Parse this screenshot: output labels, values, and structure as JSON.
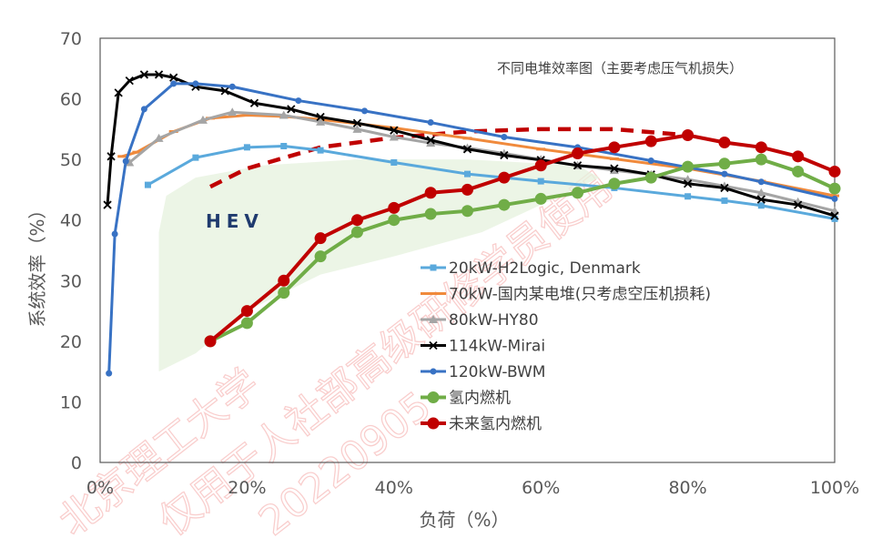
{
  "chart_data": {
    "type": "line",
    "title": "",
    "xlabel": "负荷（%）",
    "ylabel": "系统效率（%）",
    "xlim": [
      0,
      100
    ],
    "ylim": [
      0,
      70
    ],
    "x_ticks": [
      "0%",
      "20%",
      "40%",
      "60%",
      "80%",
      "100%"
    ],
    "y_ticks": [
      "0",
      "10",
      "20",
      "30",
      "40",
      "50",
      "60",
      "70"
    ],
    "grid": false,
    "legend_position": "center-right",
    "annotations": [
      "不同电堆效率图（主要考虑压气机损失）",
      "HEV"
    ],
    "watermark": "北京理工大学 仅用于人社部高级研修学员使用 20220905",
    "hev_region": {
      "color": "#e6f2dd",
      "outline": [
        [
          9,
          44
        ],
        [
          13,
          47
        ],
        [
          22,
          49
        ],
        [
          35,
          50
        ],
        [
          50,
          50
        ],
        [
          65,
          49
        ],
        [
          68,
          47
        ],
        [
          52,
          38
        ],
        [
          40,
          34
        ],
        [
          30,
          31
        ],
        [
          20,
          25
        ],
        [
          13,
          18
        ],
        [
          8,
          15
        ],
        [
          8,
          28
        ],
        [
          8,
          38
        ]
      ]
    },
    "series": [
      {
        "name": "20kW-H2Logic, Denmark",
        "color": "#5aa9dc",
        "marker": "square",
        "x": [
          6.5,
          13,
          20,
          25,
          30,
          40,
          50,
          60,
          70,
          80,
          85,
          90,
          100
        ],
        "y": [
          45.8,
          50.3,
          52,
          52.2,
          51.5,
          49.5,
          47.6,
          46.4,
          45.3,
          43.9,
          43.2,
          42.4,
          40.2
        ]
      },
      {
        "name": "70kW-国内某电堆(只考虑空压机损耗)",
        "color": "#f08a3c",
        "marker": "dash",
        "x": [
          3,
          5,
          10,
          15,
          20,
          25,
          30,
          40,
          50,
          60,
          70,
          80,
          90,
          100
        ],
        "y": [
          50.5,
          51.2,
          54.6,
          56.8,
          57.3,
          57.1,
          56.6,
          55.2,
          53.5,
          51.7,
          50.1,
          48.5,
          46.4,
          44
        ]
      },
      {
        "name": "80kW-HY80",
        "color": "#a5a5a5",
        "marker": "triangle",
        "x": [
          4,
          8,
          14,
          18,
          25,
          30,
          35,
          40,
          45,
          50,
          55,
          60,
          65,
          70,
          75,
          80,
          85,
          90,
          95,
          100
        ],
        "y": [
          49.5,
          53.5,
          56.5,
          57.8,
          57.3,
          56.2,
          55,
          53.7,
          52.7,
          51.9,
          51,
          50,
          49,
          48.2,
          47.5,
          46.7,
          45.6,
          44.5,
          43,
          41.5
        ]
      },
      {
        "name": "114kW-Mirai",
        "color": "#000000",
        "marker": "cross",
        "x": [
          1,
          1.5,
          2.5,
          4,
          6,
          8,
          10,
          13,
          17,
          21,
          26,
          30,
          35,
          40,
          45,
          50,
          55,
          60,
          65,
          70,
          75,
          80,
          85,
          90,
          95,
          100
        ],
        "y": [
          42.5,
          50.5,
          61,
          63,
          64,
          64,
          63.5,
          62,
          61.3,
          59.3,
          58.3,
          57,
          56,
          54.8,
          53.2,
          51.7,
          50.7,
          49.9,
          49,
          48.5,
          47.5,
          46,
          45.3,
          43.4,
          42.5,
          40.7
        ]
      },
      {
        "name": "120kW-BWM",
        "color": "#3872c4",
        "marker": "circle",
        "x": [
          1.2,
          2,
          3.5,
          6,
          10,
          13,
          18,
          27,
          36,
          45,
          55,
          65,
          75,
          85,
          90,
          100
        ],
        "y": [
          14.7,
          37.7,
          49.7,
          58.3,
          62.5,
          62.5,
          62,
          59.7,
          58,
          56.1,
          53.7,
          52,
          49.8,
          47.6,
          46.3,
          43.5
        ]
      },
      {
        "name": "氢内燃机",
        "color": "#70ad47",
        "marker": "big-circle",
        "x": [
          15,
          20,
          25,
          30,
          35,
          40,
          45,
          50,
          55,
          60,
          65,
          70,
          75,
          80,
          85,
          90,
          95,
          100
        ],
        "y": [
          20,
          23,
          28,
          34,
          38,
          40,
          41,
          41.5,
          42.5,
          43.5,
          44.5,
          46,
          47,
          48.8,
          49.3,
          50,
          48,
          45.2
        ]
      },
      {
        "name": "未来氢内燃机",
        "color": "#c00000",
        "marker": "big-circle",
        "x": [
          15,
          20,
          25,
          30,
          35,
          40,
          45,
          50,
          55,
          60,
          65,
          70,
          75,
          80,
          85,
          90,
          95,
          100
        ],
        "y": [
          20,
          25,
          30,
          37,
          40,
          42,
          44.5,
          45,
          47,
          49,
          51,
          52,
          53,
          54,
          52.8,
          52,
          50.5,
          48
        ]
      }
    ],
    "dashed_curve": {
      "color": "#c00000",
      "x": [
        15,
        20,
        30,
        40,
        50,
        60,
        70,
        80
      ],
      "y": [
        45.5,
        48.5,
        52,
        53.6,
        54.6,
        55,
        55,
        54
      ]
    }
  }
}
